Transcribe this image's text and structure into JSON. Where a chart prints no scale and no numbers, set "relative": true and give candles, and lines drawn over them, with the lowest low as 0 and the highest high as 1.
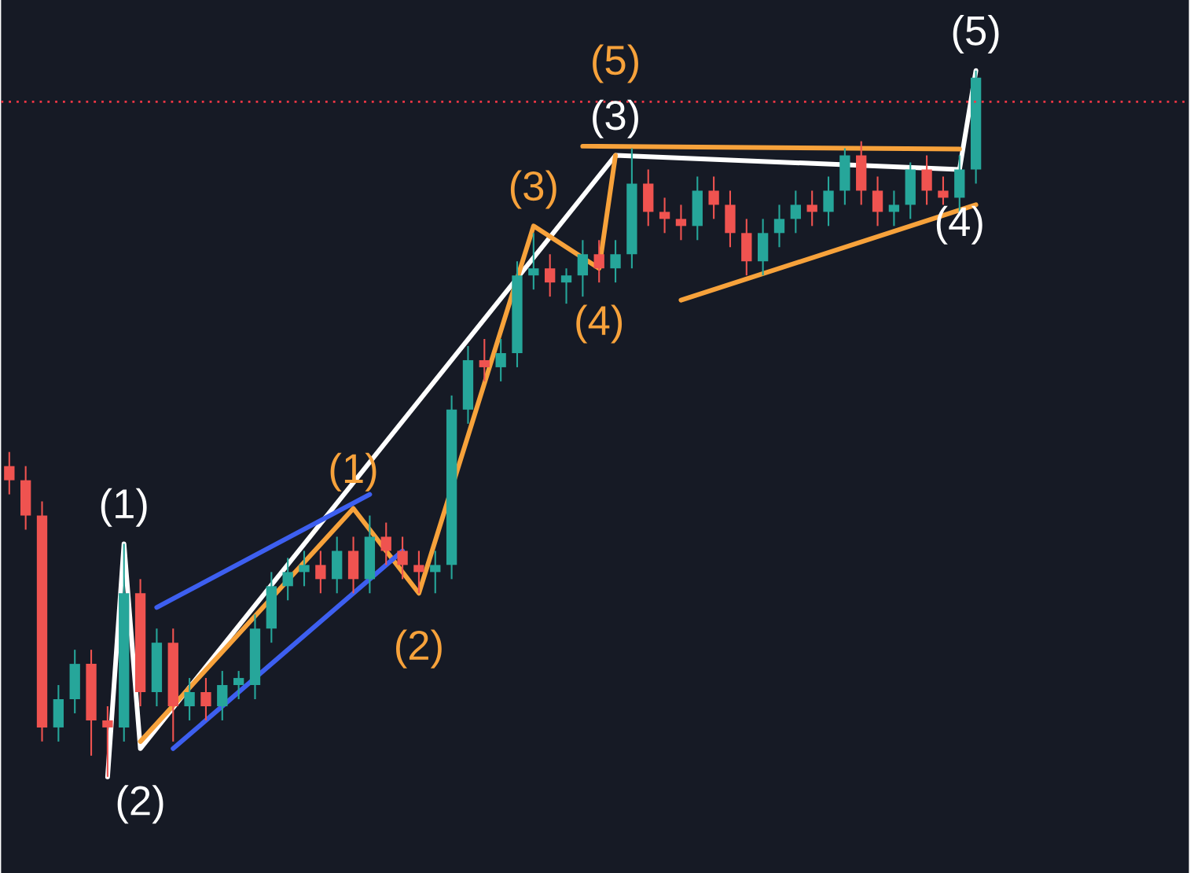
{
  "chart_data": {
    "type": "candlestick",
    "relative": true,
    "categories": [
      null,
      null,
      null,
      null,
      null,
      null,
      null,
      null,
      null,
      null,
      null,
      null,
      null,
      null,
      null,
      null,
      null,
      null,
      null,
      null,
      null,
      null,
      null,
      null,
      null,
      null,
      null,
      null,
      null,
      null,
      null,
      null,
      null,
      null,
      null,
      null,
      null,
      null,
      null,
      null,
      null,
      null,
      null,
      null,
      null,
      null,
      null,
      null,
      null,
      null,
      null,
      null,
      null,
      null,
      null,
      null,
      null,
      null,
      null,
      null
    ],
    "ohlc": [
      [
        0.44,
        0.46,
        0.4,
        0.42
      ],
      [
        0.42,
        0.44,
        0.35,
        0.37
      ],
      [
        0.37,
        0.39,
        0.05,
        0.07
      ],
      [
        0.07,
        0.13,
        0.05,
        0.11
      ],
      [
        0.11,
        0.18,
        0.09,
        0.16
      ],
      [
        0.16,
        0.18,
        0.03,
        0.08
      ],
      [
        0.08,
        0.1,
        0.0,
        0.07
      ],
      [
        0.07,
        0.33,
        0.05,
        0.26
      ],
      [
        0.26,
        0.28,
        0.1,
        0.12
      ],
      [
        0.12,
        0.21,
        0.1,
        0.19
      ],
      [
        0.19,
        0.21,
        0.05,
        0.1
      ],
      [
        0.1,
        0.14,
        0.08,
        0.12
      ],
      [
        0.12,
        0.14,
        0.08,
        0.1
      ],
      [
        0.1,
        0.15,
        0.08,
        0.13
      ],
      [
        0.13,
        0.15,
        0.11,
        0.14
      ],
      [
        0.13,
        0.23,
        0.11,
        0.21
      ],
      [
        0.21,
        0.29,
        0.19,
        0.27
      ],
      [
        0.27,
        0.31,
        0.25,
        0.29
      ],
      [
        0.29,
        0.32,
        0.27,
        0.3
      ],
      [
        0.3,
        0.32,
        0.26,
        0.28
      ],
      [
        0.28,
        0.34,
        0.26,
        0.32
      ],
      [
        0.32,
        0.34,
        0.26,
        0.28
      ],
      [
        0.28,
        0.37,
        0.26,
        0.34
      ],
      [
        0.34,
        0.36,
        0.3,
        0.32
      ],
      [
        0.32,
        0.34,
        0.28,
        0.3
      ],
      [
        0.3,
        0.32,
        0.26,
        0.29
      ],
      [
        0.29,
        0.32,
        0.26,
        0.3
      ],
      [
        0.3,
        0.54,
        0.28,
        0.52
      ],
      [
        0.52,
        0.61,
        0.5,
        0.59
      ],
      [
        0.59,
        0.62,
        0.56,
        0.58
      ],
      [
        0.58,
        0.62,
        0.56,
        0.6
      ],
      [
        0.6,
        0.73,
        0.58,
        0.71
      ],
      [
        0.71,
        0.77,
        0.69,
        0.72
      ],
      [
        0.72,
        0.74,
        0.68,
        0.7
      ],
      [
        0.7,
        0.72,
        0.67,
        0.71
      ],
      [
        0.71,
        0.76,
        0.68,
        0.74
      ],
      [
        0.74,
        0.76,
        0.7,
        0.72
      ],
      [
        0.72,
        0.76,
        0.7,
        0.74
      ],
      [
        0.74,
        0.89,
        0.72,
        0.84
      ],
      [
        0.84,
        0.86,
        0.78,
        0.8
      ],
      [
        0.8,
        0.82,
        0.77,
        0.79
      ],
      [
        0.79,
        0.81,
        0.76,
        0.78
      ],
      [
        0.78,
        0.85,
        0.76,
        0.83
      ],
      [
        0.83,
        0.85,
        0.79,
        0.81
      ],
      [
        0.81,
        0.83,
        0.75,
        0.77
      ],
      [
        0.77,
        0.79,
        0.71,
        0.73
      ],
      [
        0.73,
        0.79,
        0.71,
        0.77
      ],
      [
        0.77,
        0.81,
        0.75,
        0.79
      ],
      [
        0.79,
        0.83,
        0.77,
        0.81
      ],
      [
        0.81,
        0.83,
        0.78,
        0.8
      ],
      [
        0.8,
        0.85,
        0.78,
        0.83
      ],
      [
        0.83,
        0.89,
        0.81,
        0.88
      ],
      [
        0.88,
        0.9,
        0.81,
        0.83
      ],
      [
        0.83,
        0.85,
        0.78,
        0.8
      ],
      [
        0.8,
        0.83,
        0.78,
        0.81
      ],
      [
        0.81,
        0.87,
        0.79,
        0.86
      ],
      [
        0.86,
        0.88,
        0.81,
        0.83
      ],
      [
        0.83,
        0.85,
        0.81,
        0.82
      ],
      [
        0.82,
        0.88,
        0.8,
        0.86
      ],
      [
        0.86,
        1.0,
        0.84,
        0.99
      ]
    ],
    "series": [
      {
        "type": "line",
        "color": "#ffffff",
        "values": [
          null,
          null,
          null,
          null,
          null,
          null,
          0.0,
          0.33,
          0.04,
          null,
          null,
          null,
          null,
          null,
          null,
          null,
          null,
          null,
          null,
          null,
          null,
          null,
          null,
          null,
          null,
          null,
          null,
          null,
          null,
          null,
          null,
          null,
          null,
          null,
          null,
          null,
          null,
          0.88,
          null,
          null,
          null,
          null,
          null,
          null,
          null,
          null,
          null,
          null,
          null,
          null,
          null,
          null,
          null,
          null,
          null,
          null,
          null,
          null,
          0.86,
          1.0
        ]
      },
      {
        "type": "line",
        "color": "#f7a23b",
        "values": [
          null,
          null,
          null,
          null,
          null,
          null,
          null,
          null,
          0.05,
          null,
          null,
          null,
          null,
          null,
          null,
          null,
          null,
          null,
          null,
          null,
          null,
          0.38,
          null,
          null,
          null,
          0.26,
          null,
          null,
          null,
          null,
          null,
          null,
          0.78,
          null,
          null,
          null,
          0.72,
          0.88,
          null,
          null,
          null,
          null,
          null,
          null,
          null,
          null,
          null,
          null,
          null,
          null,
          null,
          null,
          null,
          null,
          null,
          null,
          null,
          null,
          null,
          null
        ]
      },
      {
        "type": "line",
        "color": "#f7a23b",
        "values": [
          null,
          null,
          null,
          null,
          null,
          null,
          null,
          null,
          null,
          null,
          null,
          null,
          null,
          null,
          null,
          null,
          null,
          null,
          null,
          null,
          null,
          null,
          null,
          null,
          null,
          null,
          null,
          null,
          null,
          null,
          null,
          null,
          null,
          null,
          null,
          0.893,
          null,
          null,
          null,
          null,
          null,
          null,
          null,
          null,
          null,
          null,
          null,
          null,
          null,
          null,
          null,
          null,
          null,
          null,
          null,
          null,
          null,
          null,
          0.889,
          null
        ]
      },
      {
        "type": "line",
        "color": "#f7a23b",
        "values": [
          null,
          null,
          null,
          null,
          null,
          null,
          null,
          null,
          null,
          null,
          null,
          null,
          null,
          null,
          null,
          null,
          null,
          null,
          null,
          null,
          null,
          null,
          null,
          null,
          null,
          null,
          null,
          null,
          null,
          null,
          null,
          null,
          null,
          null,
          null,
          null,
          null,
          null,
          null,
          null,
          null,
          0.675,
          null,
          null,
          null,
          null,
          null,
          null,
          null,
          null,
          null,
          null,
          null,
          null,
          null,
          null,
          null,
          null,
          null,
          0.81
        ]
      },
      {
        "type": "line",
        "color": "#3d5ff0",
        "values": [
          null,
          null,
          null,
          null,
          null,
          null,
          null,
          null,
          null,
          0.24,
          null,
          null,
          null,
          null,
          null,
          null,
          null,
          null,
          null,
          null,
          null,
          null,
          0.4,
          null,
          null,
          null,
          null,
          null,
          null,
          null,
          null,
          null,
          null,
          null,
          null,
          null,
          null,
          null,
          null,
          null,
          null,
          null,
          null,
          null,
          null,
          null,
          null,
          null,
          null,
          null,
          null,
          null,
          null,
          null,
          null,
          null,
          null,
          null,
          null,
          null
        ]
      },
      {
        "type": "line",
        "color": "#3d5ff0",
        "values": [
          null,
          null,
          null,
          null,
          null,
          null,
          null,
          null,
          null,
          null,
          0.04,
          null,
          null,
          null,
          null,
          null,
          null,
          null,
          null,
          null,
          null,
          null,
          null,
          null,
          0.32,
          null,
          null,
          null,
          null,
          null,
          null,
          null,
          null,
          null,
          null,
          null,
          null,
          null,
          null,
          null,
          null,
          null,
          null,
          null,
          null,
          null,
          null,
          null,
          null,
          null,
          null,
          null,
          null,
          null,
          null,
          null,
          null,
          null,
          null,
          null
        ]
      }
    ],
    "ref_lines": [
      {
        "axis": "y",
        "value": 0.956,
        "color": "#f23645",
        "line_style": "dotted"
      }
    ],
    "annotations": [
      "(1)",
      "(2)",
      "(3)",
      "(4)",
      "(5)",
      "(1)",
      "(2)",
      "(3)",
      "(4)",
      "(5)"
    ]
  }
}
